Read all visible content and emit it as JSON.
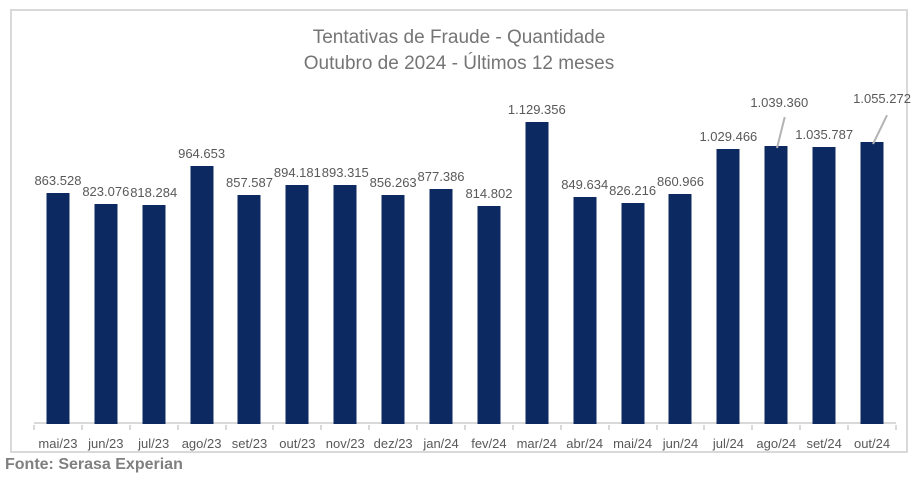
{
  "title": {
    "line1": "Tentativas de Fraude - Quantidade",
    "line2": "Outubro de 2024 - Últimos 12 meses"
  },
  "source_note": "Fonte: Serasa Experian",
  "colors": {
    "bar": "#0c2a61",
    "title_text": "#757575",
    "data_label": "#595959",
    "axis_line": "#d9d9d9",
    "frame_border": "#d9d9d9",
    "callout_line": "#b3b3b3",
    "source_text": "#7f7f7f"
  },
  "chart_data": {
    "type": "bar",
    "title": "Tentativas de Fraude - Quantidade",
    "subtitle": "Outubro de 2024 - Últimos 12 meses",
    "xlabel": "",
    "ylabel": "",
    "categories": [
      "mai/23",
      "jun/23",
      "jul/23",
      "ago/23",
      "set/23",
      "out/23",
      "nov/23",
      "dez/23",
      "jan/24",
      "fev/24",
      "mar/24",
      "abr/24",
      "mai/24",
      "jun/24",
      "jul/24",
      "ago/24",
      "set/24",
      "out/24"
    ],
    "values": [
      863528,
      823076,
      818284,
      964653,
      857587,
      894181,
      893315,
      856263,
      877386,
      814802,
      1129356,
      849634,
      826216,
      860966,
      1029466,
      1039360,
      1035787,
      1055272
    ],
    "value_labels": [
      "863.528",
      "823.076",
      "818.284",
      "964.653",
      "857.587",
      "894.181",
      "893.315",
      "856.263",
      "877.386",
      "814.802",
      "1.129.356",
      "849.634",
      "826.216",
      "860.966",
      "1.029.466",
      "1.039.360",
      "1.035.787",
      "1.055.272"
    ],
    "ylim": [
      0,
      1200000
    ],
    "grid": false,
    "legend": false,
    "bar_color": "#0c2a61",
    "callout_indices": [
      15,
      17
    ]
  }
}
